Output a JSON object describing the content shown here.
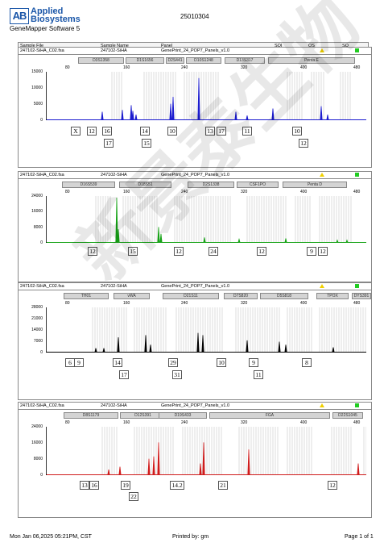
{
  "header": {
    "logo_mark": "AB",
    "logo_line1": "Applied",
    "logo_line2": "Biosystems",
    "software": "GeneMapper Software 5",
    "run_id": "25010304",
    "columns": [
      "Sample File",
      "Sample Name",
      "Panel",
      "SQI",
      "OS",
      "SQ"
    ]
  },
  "scale_ticks": [
    "80",
    "160",
    "240",
    "320",
    "400",
    "480"
  ],
  "panels": [
    {
      "sample_file": "247102-SiHA_C02.fsa",
      "sample_name": "247102-SiHA",
      "panel": "GenePrint_24_POP7_Panels_v1.0",
      "color": "#1c1ccf",
      "y_labels": [
        "15000",
        "10000",
        "5000",
        "0"
      ],
      "markers": [
        "D3S1358",
        "D1S1656",
        "D2S441",
        "D10S1248",
        "D13S317",
        "Penta E"
      ],
      "alleles": [
        "X",
        "12",
        "16",
        "17",
        "14",
        "15",
        "10",
        "13",
        "17",
        "11",
        "10",
        "12"
      ]
    },
    {
      "sample_file": "247102-SiHA_C02.fsa",
      "sample_name": "247102-SiHA",
      "panel": "GenePrint_24_POP7_Panels_v1.0",
      "color": "#17a317",
      "y_labels": [
        "24000",
        "16000",
        "8000",
        "0"
      ],
      "markers": [
        "D16S539",
        "D18S51",
        "D2S1338",
        "CSF1PO",
        "Penta D"
      ],
      "alleles": [
        "12",
        "15",
        "12",
        "24",
        "12",
        "9",
        "12"
      ]
    },
    {
      "sample_file": "247102-SiHA_C02.fsa",
      "sample_name": "247102-SiHA",
      "panel": "GenePrint_24_POP7_Panels_v1.0",
      "color": "#000000",
      "y_labels": [
        "28000",
        "21000",
        "14000",
        "7000",
        "0"
      ],
      "markers": [
        "TH01",
        "vWA",
        "D21S11",
        "D7S820",
        "D5S818",
        "TPOX",
        "DYS391"
      ],
      "alleles": [
        "6",
        "9",
        "14",
        "17",
        "29",
        "31",
        "10",
        "9",
        "11",
        "8"
      ]
    },
    {
      "sample_file": "247102-SiHA_C02.fsa",
      "sample_name": "247102-SiHA",
      "panel": "GenePrint_24_POP7_Panels_v1.0",
      "color": "#d01c1c",
      "y_labels": [
        "24000",
        "16000",
        "8000",
        "0"
      ],
      "markers": [
        "D8S1179",
        "D12S391",
        "D19S433",
        "FGA",
        "D22S1045"
      ],
      "alleles": [
        "13",
        "16",
        "19",
        "22",
        "14.2",
        "21",
        "12"
      ]
    }
  ],
  "footer": {
    "date": "Mon Jan 06,2025 05:21PM, CST",
    "printed_by": "Printed by: gm",
    "page": "Page 1 of 1"
  },
  "watermark": "新景泰生物"
}
